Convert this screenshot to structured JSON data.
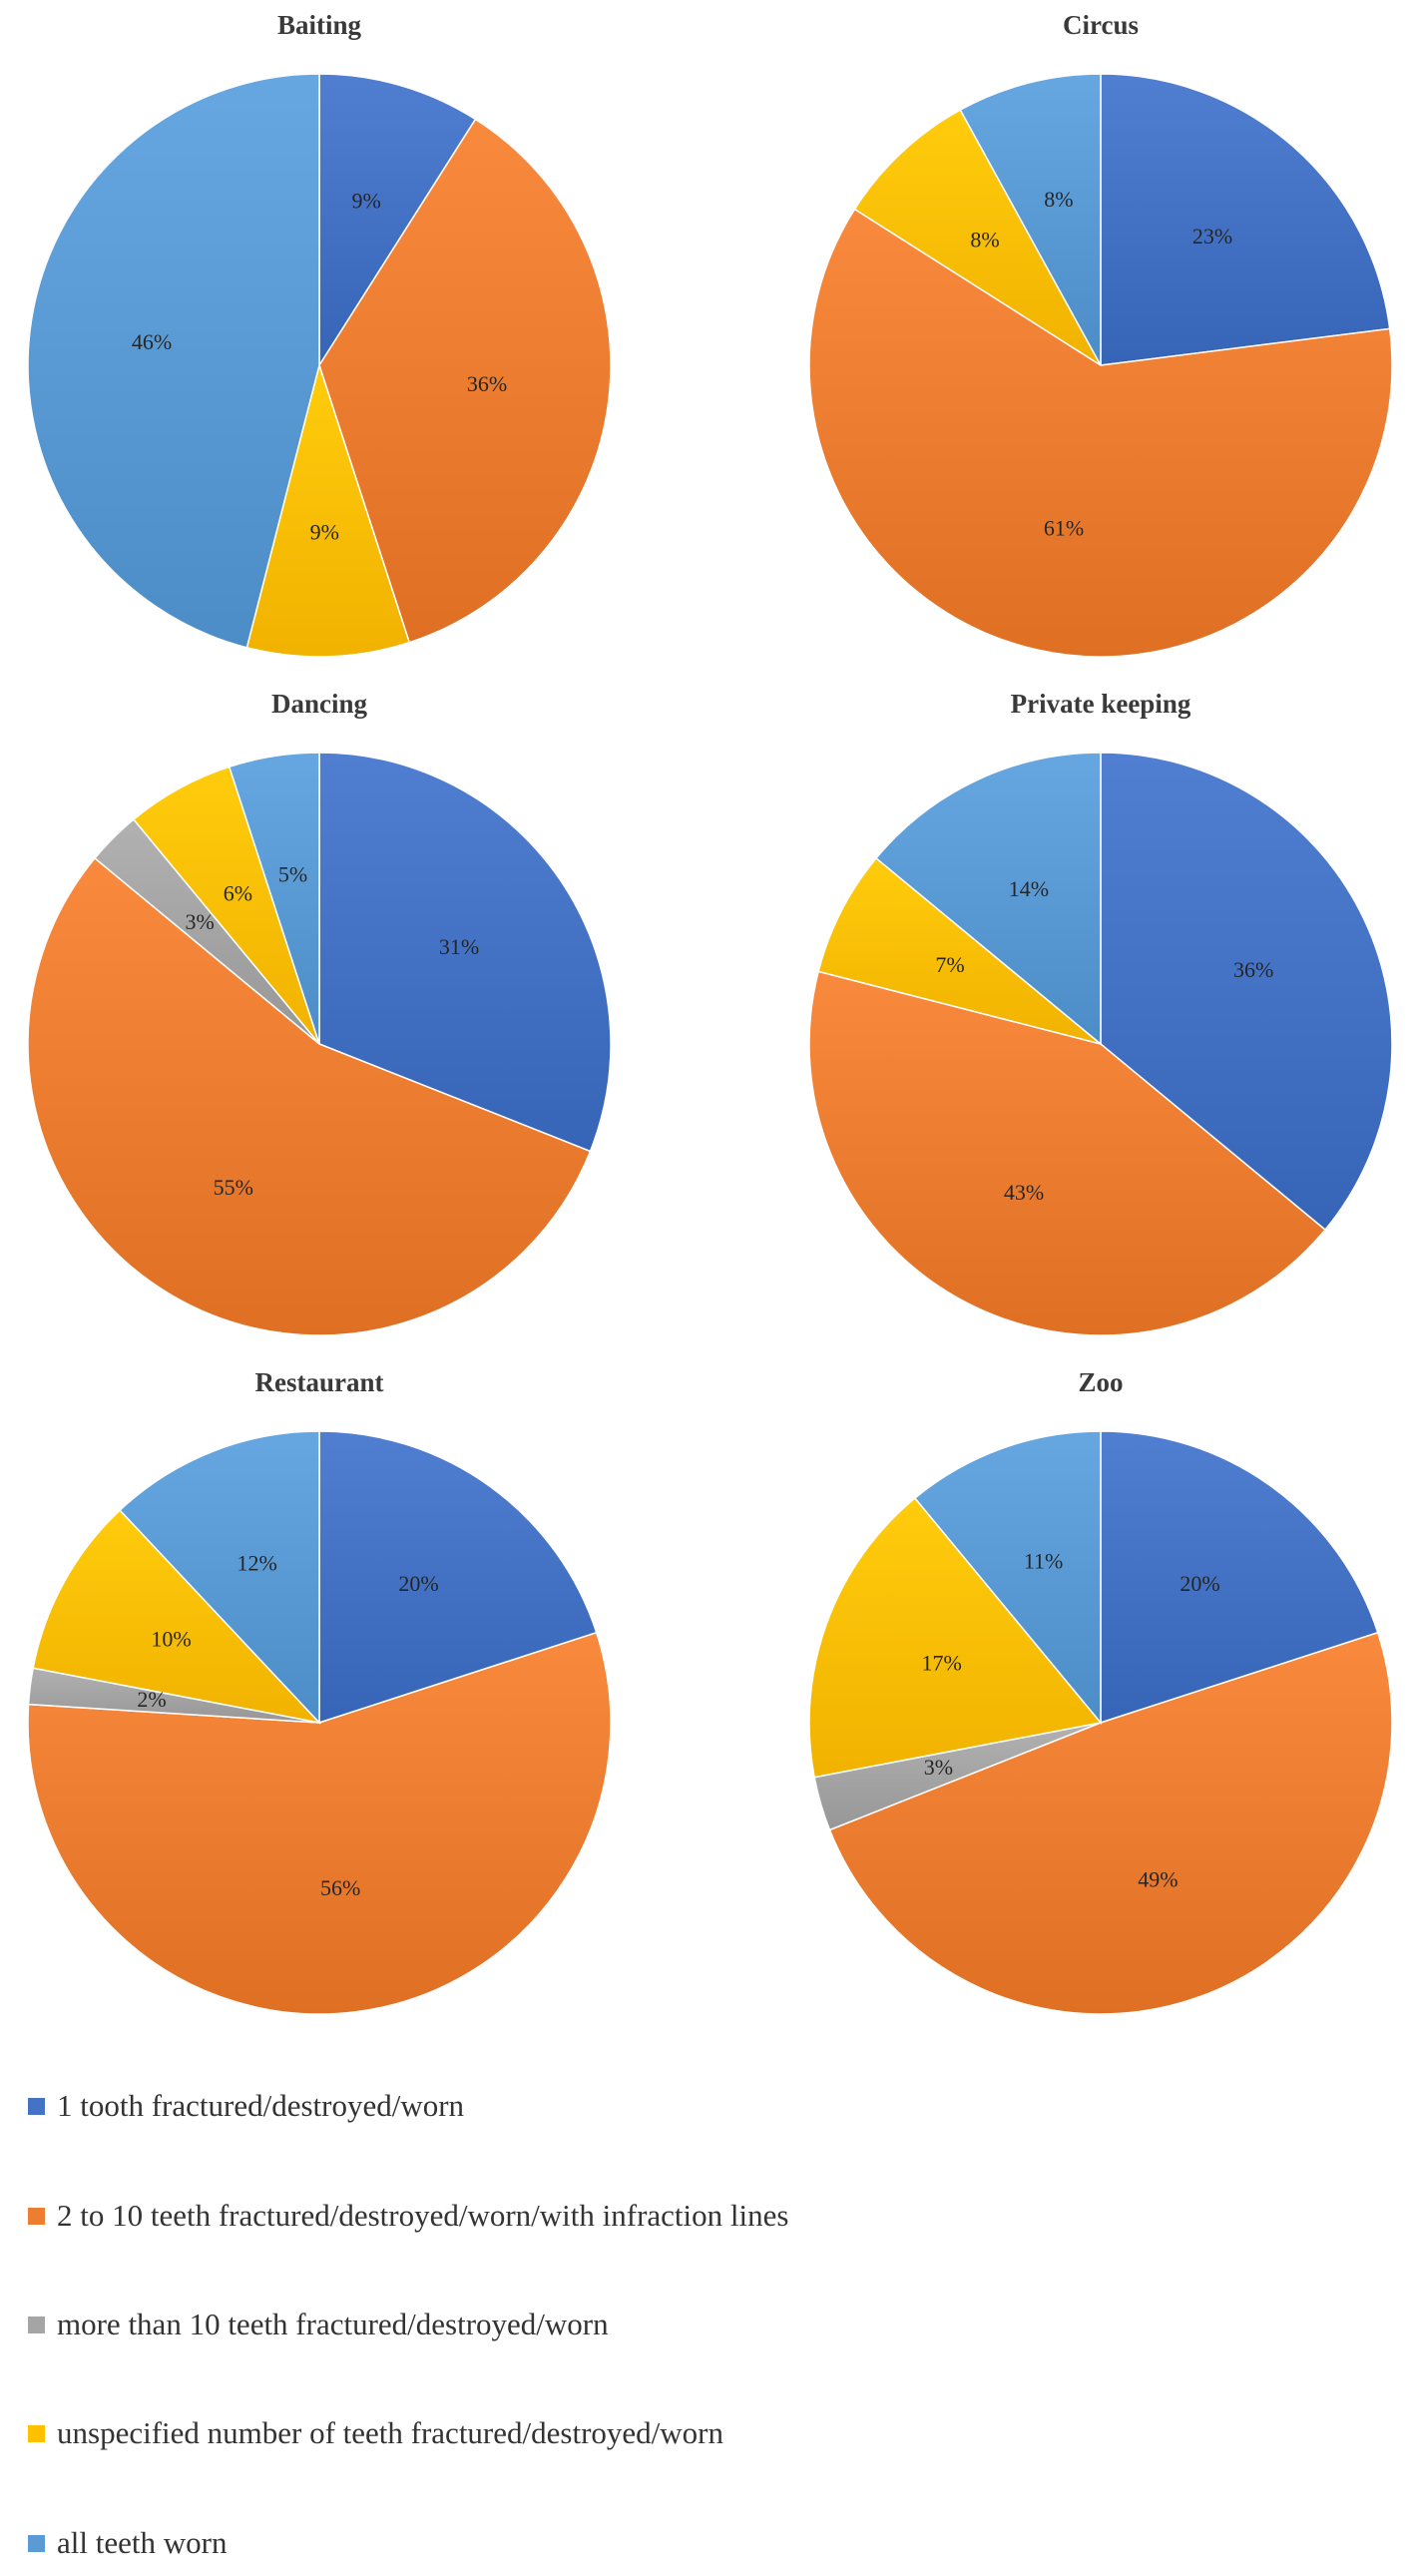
{
  "colors": {
    "one_tooth": "#4472C4",
    "two_to_ten": "#ED7D31",
    "more_than_ten": "#A5A5A5",
    "unspecified": "#FFC000",
    "all_worn": "#5B9BD5",
    "label_text": "#262626",
    "title_text": "#3a3a3a"
  },
  "legend": {
    "placement": "bottom",
    "items": [
      {
        "key": "one_tooth",
        "label": "1 tooth fractured/destroyed/worn"
      },
      {
        "key": "two_to_ten",
        "label": "2 to 10 teeth fractured/destroyed/worn/with infraction lines"
      },
      {
        "key": "more_than_ten",
        "label": "more than 10 teeth fractured/destroyed/worn"
      },
      {
        "key": "unspecified",
        "label": "unspecified number of teeth fractured/destroyed/worn"
      },
      {
        "key": "all_worn",
        "label": "all teeth worn"
      }
    ]
  },
  "chart_data": [
    {
      "type": "pie",
      "title": "Baiting",
      "slices": [
        {
          "key": "one_tooth",
          "value": 9,
          "label": "9%"
        },
        {
          "key": "two_to_ten",
          "value": 36,
          "label": "36%"
        },
        {
          "key": "unspecified",
          "value": 9,
          "label": "9%"
        },
        {
          "key": "all_worn",
          "value": 46,
          "label": "46%"
        }
      ]
    },
    {
      "type": "pie",
      "title": "Circus",
      "slices": [
        {
          "key": "one_tooth",
          "value": 23,
          "label": "23%"
        },
        {
          "key": "two_to_ten",
          "value": 61,
          "label": "61%"
        },
        {
          "key": "unspecified",
          "value": 8,
          "label": "8%"
        },
        {
          "key": "all_worn",
          "value": 8,
          "label": "8%"
        }
      ]
    },
    {
      "type": "pie",
      "title": "Dancing",
      "slices": [
        {
          "key": "one_tooth",
          "value": 31,
          "label": "31%"
        },
        {
          "key": "two_to_ten",
          "value": 55,
          "label": "55%"
        },
        {
          "key": "more_than_ten",
          "value": 3,
          "label": "3%"
        },
        {
          "key": "unspecified",
          "value": 6,
          "label": "6%"
        },
        {
          "key": "all_worn",
          "value": 5,
          "label": "5%"
        }
      ]
    },
    {
      "type": "pie",
      "title": "Private keeping",
      "slices": [
        {
          "key": "one_tooth",
          "value": 36,
          "label": "36%"
        },
        {
          "key": "two_to_ten",
          "value": 43,
          "label": "43%"
        },
        {
          "key": "unspecified",
          "value": 7,
          "label": "7%"
        },
        {
          "key": "all_worn",
          "value": 14,
          "label": "14%"
        }
      ]
    },
    {
      "type": "pie",
      "title": "Restaurant",
      "slices": [
        {
          "key": "one_tooth",
          "value": 20,
          "label": "20%"
        },
        {
          "key": "two_to_ten",
          "value": 56,
          "label": "56%"
        },
        {
          "key": "more_than_ten",
          "value": 2,
          "label": "2%"
        },
        {
          "key": "unspecified",
          "value": 10,
          "label": "10%"
        },
        {
          "key": "all_worn",
          "value": 12,
          "label": "12%"
        }
      ]
    },
    {
      "type": "pie",
      "title": "Zoo",
      "slices": [
        {
          "key": "one_tooth",
          "value": 20,
          "label": "20%"
        },
        {
          "key": "two_to_ten",
          "value": 49,
          "label": "49%"
        },
        {
          "key": "more_than_ten",
          "value": 3,
          "label": "3%"
        },
        {
          "key": "unspecified",
          "value": 17,
          "label": "17%"
        },
        {
          "key": "all_worn",
          "value": 11,
          "label": "11%"
        }
      ]
    }
  ]
}
